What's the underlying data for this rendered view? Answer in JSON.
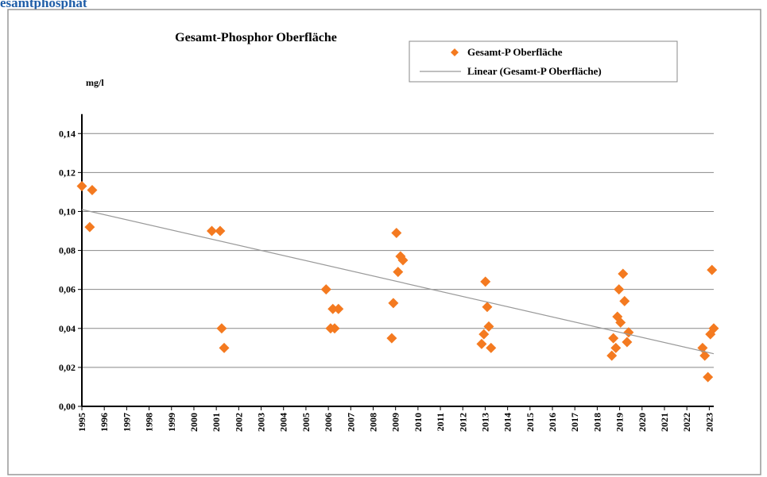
{
  "header": {
    "title": "esamtphosphat"
  },
  "chart_data": {
    "type": "scatter",
    "title": "Gesamt-Phosphor Oberfläche",
    "y_label": "mg/l",
    "series": [
      {
        "name": "Gesamt-P Oberfläche",
        "color": "#f47a20",
        "marker": "diamond",
        "x": [
          1995.0,
          1995.46,
          1995.35,
          2000.8,
          2001.17,
          2001.24,
          2001.35,
          2005.9,
          2006.1,
          2006.2,
          2006.28,
          2006.45,
          2008.83,
          2008.9,
          2009.04,
          2009.11,
          2009.22,
          2009.33,
          2012.84,
          2012.94,
          2013.01,
          2013.09,
          2013.16,
          2013.26,
          2018.65,
          2018.72,
          2018.83,
          2018.9,
          2018.97,
          2019.04,
          2019.15,
          2019.22,
          2019.33,
          2019.4,
          2022.7,
          2022.8,
          2022.94,
          2023.05,
          2023.12,
          2023.2
        ],
        "values": [
          0.113,
          0.111,
          0.092,
          0.09,
          0.09,
          0.04,
          0.03,
          0.06,
          0.04,
          0.05,
          0.04,
          0.05,
          0.035,
          0.053,
          0.089,
          0.069,
          0.077,
          0.075,
          0.032,
          0.037,
          0.064,
          0.051,
          0.041,
          0.03,
          0.026,
          0.035,
          0.03,
          0.046,
          0.06,
          0.043,
          0.068,
          0.054,
          0.033,
          0.038,
          0.03,
          0.026,
          0.015,
          0.037,
          0.07,
          0.04
        ]
      },
      {
        "name": "Linear (Gesamt-P Oberfläche)",
        "color": "#999999",
        "marker": "line",
        "x": [
          1995,
          2023.2
        ],
        "values": [
          0.101,
          0.027
        ]
      }
    ],
    "xlim": [
      1995,
      2023.2
    ],
    "xticks": [
      1995,
      1996,
      1997,
      1998,
      1999,
      2000,
      2001,
      2002,
      2003,
      2004,
      2005,
      2006,
      2007,
      2008,
      2009,
      2010,
      2011,
      2012,
      2013,
      2014,
      2015,
      2016,
      2017,
      2018,
      2019,
      2020,
      2021,
      2022,
      2023
    ],
    "ylim": [
      0,
      0.15
    ],
    "yticks": [
      {
        "value": 0,
        "label": "0,00"
      },
      {
        "value": 0.02,
        "label": "0,02"
      },
      {
        "value": 0.04,
        "label": "0,04"
      },
      {
        "value": 0.06,
        "label": "0,06"
      },
      {
        "value": 0.08,
        "label": "0,08"
      },
      {
        "value": 0.1,
        "label": "0,10"
      },
      {
        "value": 0.12,
        "label": "0,12"
      },
      {
        "value": 0.14,
        "label": "0,14"
      }
    ],
    "grid": true,
    "legend": "top-right"
  }
}
